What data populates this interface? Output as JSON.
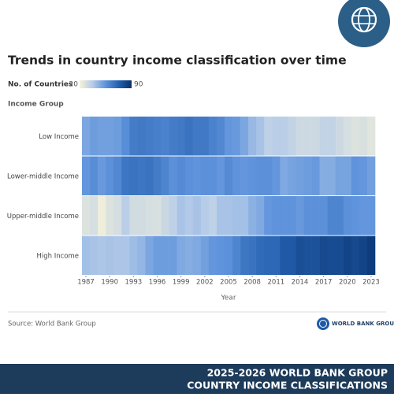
{
  "chart_data": {
    "type": "heatmap",
    "title": "Trends in country income classification over time",
    "legend_title": "No. of Countries",
    "y_axis_title": "Income Group",
    "x_axis_title": "Year",
    "zlim": [
      20,
      90
    ],
    "colorscale": [
      "#f7f2d8",
      "#b4cbe8",
      "#5f93dc",
      "#2461b0",
      "#08306b"
    ],
    "y": [
      "Low Income",
      "Lower-middle Income",
      "Upper-middle Income",
      "High Income"
    ],
    "x": [
      1987,
      1988,
      1989,
      1990,
      1991,
      1992,
      1993,
      1994,
      1995,
      1996,
      1997,
      1998,
      1999,
      2000,
      2001,
      2002,
      2003,
      2004,
      2005,
      2006,
      2007,
      2008,
      2009,
      2010,
      2011,
      2012,
      2013,
      2014,
      2015,
      2016,
      2017,
      2018,
      2019,
      2020,
      2021,
      2022,
      2023
    ],
    "xticks": [
      1987,
      1990,
      1993,
      1996,
      1999,
      2002,
      2005,
      2008,
      2011,
      2014,
      2017,
      2020,
      2023
    ],
    "values": [
      [
        49,
        52,
        51,
        51,
        52,
        57,
        63,
        64,
        63,
        62,
        61,
        63,
        64,
        66,
        64,
        64,
        61,
        59,
        54,
        53,
        49,
        43,
        40,
        35,
        36,
        36,
        34,
        31,
        31,
        31,
        34,
        34,
        31,
        29,
        27,
        28,
        26
      ],
      [
        54,
        57,
        53,
        56,
        59,
        65,
        66,
        65,
        66,
        63,
        60,
        56,
        58,
        56,
        55,
        56,
        56,
        54,
        58,
        55,
        54,
        55,
        56,
        56,
        54,
        48,
        50,
        51,
        52,
        53,
        47,
        47,
        50,
        50,
        55,
        54,
        51
      ],
      [
        27,
        29,
        22,
        27,
        29,
        36,
        30,
        30,
        29,
        28,
        32,
        35,
        40,
        38,
        40,
        37,
        35,
        40,
        40,
        41,
        41,
        46,
        48,
        54,
        55,
        55,
        55,
        53,
        56,
        56,
        56,
        60,
        60,
        56,
        55,
        54,
        54
      ],
      [
        41,
        40,
        39,
        40,
        39,
        39,
        42,
        44,
        49,
        52,
        52,
        52,
        48,
        47,
        48,
        51,
        54,
        55,
        56,
        60,
        65,
        66,
        69,
        70,
        70,
        75,
        75,
        79,
        78,
        78,
        81,
        80,
        80,
        83,
        81,
        83,
        86
      ]
    ],
    "source": "Source: World Bank Group"
  },
  "logo_text": "WORLD BANK GROUP",
  "banner": {
    "line1": "2025-2026 WORLD BANK GROUP",
    "line2": "COUNTRY INCOME CLASSIFICATIONS"
  }
}
